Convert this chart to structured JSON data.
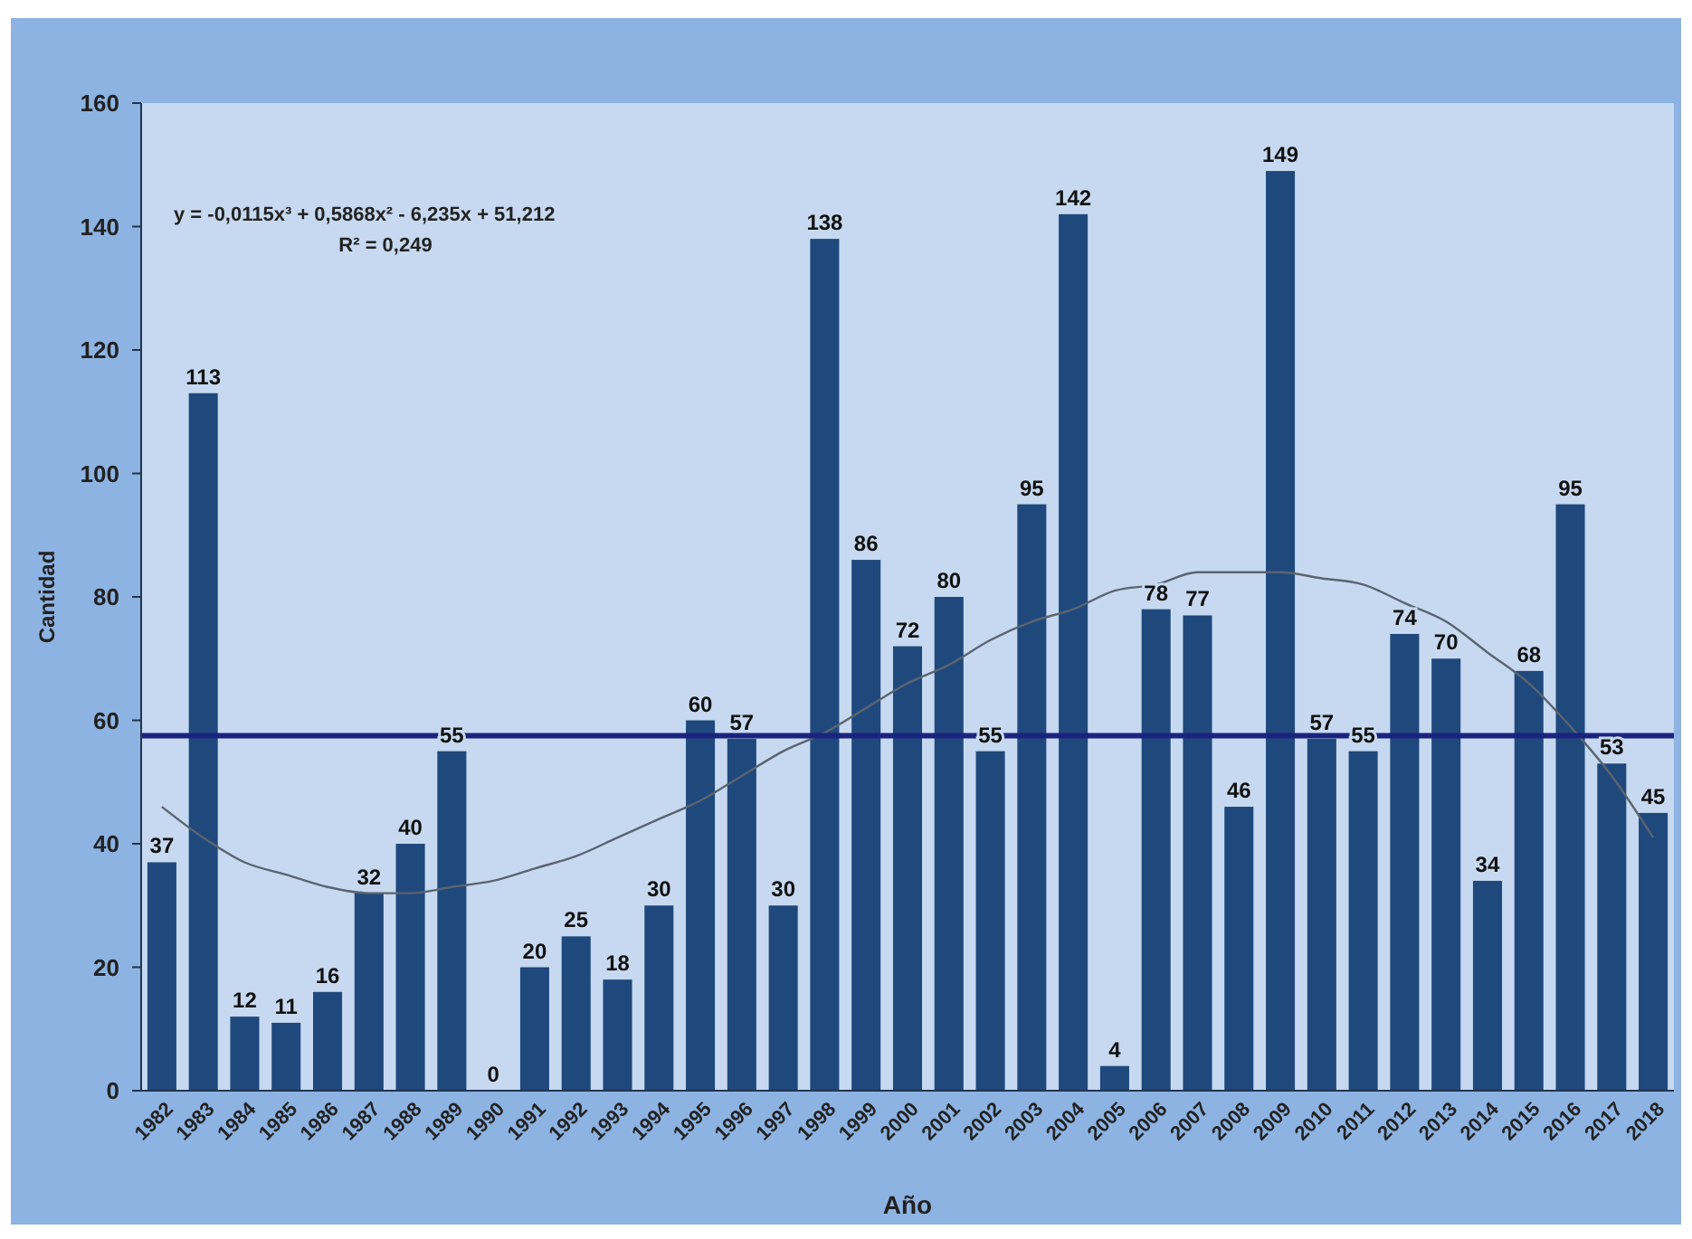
{
  "chart_data": {
    "type": "bar",
    "xlabel": "Año",
    "ylabel": "Cantidad",
    "categories": [
      "1982",
      "1983",
      "1984",
      "1985",
      "1986",
      "1987",
      "1988",
      "1989",
      "1990",
      "1991",
      "1992",
      "1993",
      "1994",
      "1995",
      "1996",
      "1997",
      "1998",
      "1999",
      "2000",
      "2001",
      "2002",
      "2003",
      "2004",
      "2005",
      "2006",
      "2007",
      "2008",
      "2009",
      "2010",
      "2011",
      "2012",
      "2013",
      "2014",
      "2015",
      "2016",
      "2017",
      "2018"
    ],
    "series": [
      {
        "color": "#1f497d",
        "values": [
          37,
          113,
          12,
          11,
          16,
          32,
          40,
          55,
          0,
          20,
          25,
          18,
          30,
          60,
          57,
          30,
          138,
          86,
          72,
          80,
          55,
          95,
          142,
          4,
          78,
          77,
          46,
          149,
          57,
          55,
          74,
          70,
          34,
          68,
          95,
          53,
          45
        ],
        "value_labels": [
          "37",
          "113",
          "12",
          "11",
          "16",
          "32",
          "40",
          "55",
          "0",
          "20",
          "25",
          "18",
          "30",
          "60",
          "57",
          "30",
          "138",
          "86",
          "72",
          "80",
          "55",
          "95",
          "142",
          "4",
          "78",
          "77",
          "46",
          "149",
          "57",
          "55",
          "74",
          "70",
          "34",
          "68",
          "95",
          "53",
          "45"
        ]
      },
      {
        "type": "line",
        "color": "#5a6470",
        "values": [
          46,
          41,
          37,
          35,
          33,
          32,
          32,
          33,
          34,
          36,
          38,
          41,
          44,
          47,
          51,
          55,
          58,
          62,
          66,
          69,
          73,
          76,
          78,
          81,
          82,
          84,
          84,
          84,
          83,
          82,
          79,
          76,
          71,
          66,
          59,
          51,
          41
        ]
      }
    ],
    "ylim": [
      0,
      160
    ],
    "yticks": [
      0,
      20,
      40,
      60,
      80,
      100,
      120,
      140,
      160
    ],
    "grid": false,
    "marker": "none",
    "ref_lines": [
      {
        "axis": "y",
        "value": 57.5,
        "color": "#1a237e"
      }
    ],
    "annotations": [
      {
        "text": "y = -0,0115x³ + 0,5868x² - 6,235x + 51,212"
      },
      {
        "text": "R² = 0,249"
      }
    ]
  }
}
